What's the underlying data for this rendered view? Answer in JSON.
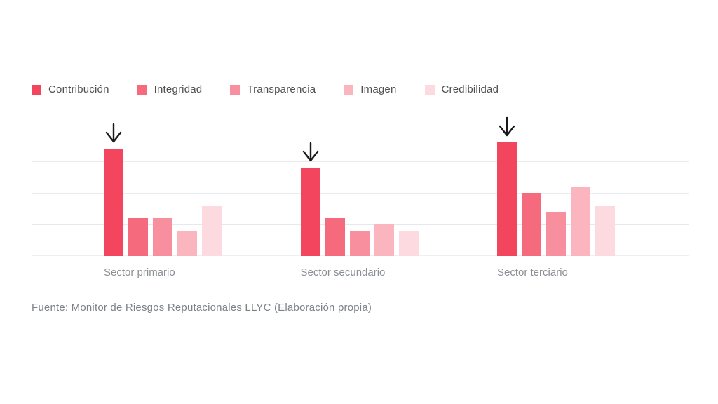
{
  "chart_data": {
    "type": "bar",
    "title": "",
    "xlabel": "",
    "ylabel": "",
    "categories": [
      "Sector primario",
      "Sector secundario",
      "Sector terciario"
    ],
    "series": [
      {
        "name": "Contribución",
        "color": "#f3455d",
        "values": [
          34,
          28,
          36
        ]
      },
      {
        "name": "Integridad",
        "color": "#f56a7d",
        "values": [
          12,
          12,
          20
        ]
      },
      {
        "name": "Transparencia",
        "color": "#f78f9e",
        "values": [
          12,
          8,
          14
        ]
      },
      {
        "name": "Imagen",
        "color": "#fab5bf",
        "values": [
          8,
          10,
          22
        ]
      },
      {
        "name": "Credibilidad",
        "color": "#fcdadf",
        "values": [
          16,
          8,
          16
        ]
      }
    ],
    "ylim": [
      0,
      40
    ],
    "gridline_step": 10,
    "grid": true,
    "axis_tick_labels_visible": false,
    "legend_position": "top-left",
    "annotations": [
      {
        "type": "arrow-down",
        "series": "Contribución",
        "category": "Sector primario"
      },
      {
        "type": "arrow-down",
        "series": "Contribución",
        "category": "Sector secundario"
      },
      {
        "type": "arrow-down",
        "series": "Contribución",
        "category": "Sector terciario"
      }
    ]
  },
  "source": {
    "text": "Fuente: Monitor de Riesgos Reputacionales LLYC (Elaboración propia)"
  },
  "colors": {
    "gridline": "#ececec",
    "legend_text": "#4f4f4f",
    "category_text": "#8a8f94",
    "source_text": "#7d8287",
    "arrow": "#1a1a1a"
  }
}
